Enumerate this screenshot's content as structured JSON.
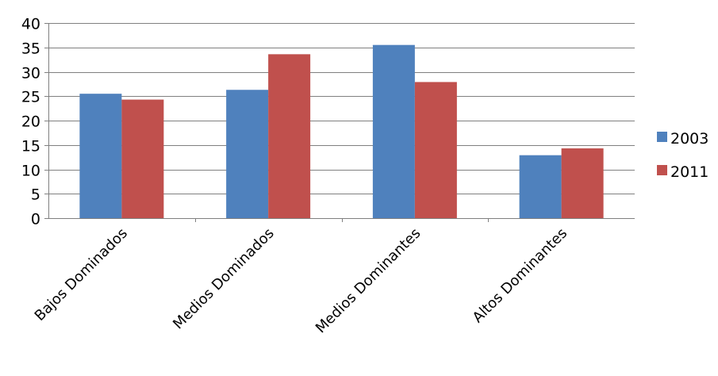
{
  "chart_data": {
    "type": "bar",
    "categories": [
      "Bajos Dominados",
      "Medios Dominados",
      "Medios Dominantes",
      "Altos Dominantes"
    ],
    "series": [
      {
        "name": "2003",
        "color": "#4F81BD",
        "values": [
          25.5,
          26.3,
          35.5,
          12.9
        ]
      },
      {
        "name": "2011",
        "color": "#C0504D",
        "values": [
          24.3,
          33.6,
          27.9,
          14.3
        ]
      }
    ],
    "title": "",
    "xlabel": "",
    "ylabel": "",
    "ylim": [
      0,
      40
    ],
    "yticks": [
      "0",
      "5",
      "10",
      "15",
      "20",
      "25",
      "30",
      "35",
      "40"
    ],
    "grid": true,
    "legend_position": "right"
  }
}
